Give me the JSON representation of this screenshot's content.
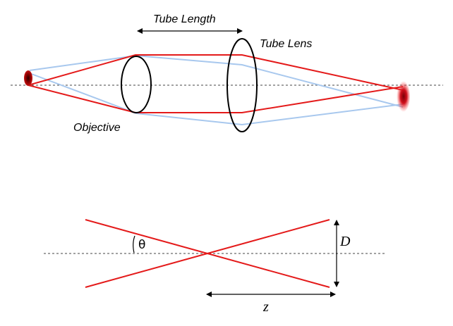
{
  "labels": {
    "tube_length": "Tube Length",
    "tube_lens": "Tube Lens",
    "objective": "Objective",
    "theta": "θ",
    "diameter": "D",
    "distance": "z"
  },
  "colors": {
    "ray_primary": "#e41a1a",
    "ray_secondary": "#a8c8ee",
    "lens_outline": "#000000",
    "axis": "#444444",
    "source_spot": "#8b0000",
    "image_spot": "#c0101a"
  }
}
